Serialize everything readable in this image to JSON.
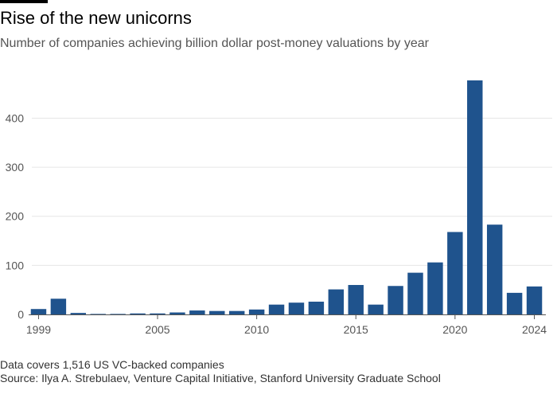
{
  "title": "Rise of the new unicorns",
  "subtitle": "Number of companies achieving billion dollar post-money valuations by year",
  "footnote": "Data covers 1,516 US VC-backed companies",
  "source": "Source: Ilya A. Strebulaev, Venture Capital Initiative, Stanford University Graduate School",
  "colors": {
    "bar": "#1f538d",
    "grid": "#e6e6e6",
    "axis": "#555555",
    "text": "#555555"
  },
  "chart_data": {
    "type": "bar",
    "title": "Rise of the new unicorns",
    "x": [
      1999,
      2000,
      2001,
      2002,
      2003,
      2004,
      2005,
      2006,
      2007,
      2008,
      2009,
      2010,
      2011,
      2012,
      2013,
      2014,
      2015,
      2016,
      2017,
      2018,
      2019,
      2020,
      2021,
      2022,
      2023,
      2024
    ],
    "values": [
      11,
      32,
      3,
      1,
      1,
      2,
      2,
      4,
      8,
      7,
      7,
      10,
      20,
      24,
      26,
      51,
      60,
      20,
      58,
      85,
      106,
      168,
      477,
      183,
      44,
      57
    ],
    "y_ticks": [
      0,
      100,
      200,
      300,
      400
    ],
    "x_tick_labels": [
      "1999",
      "2005",
      "2010",
      "2015",
      "2020",
      "2024"
    ],
    "ylim": [
      0,
      490
    ],
    "grid": true,
    "xlabel": "",
    "ylabel": ""
  }
}
